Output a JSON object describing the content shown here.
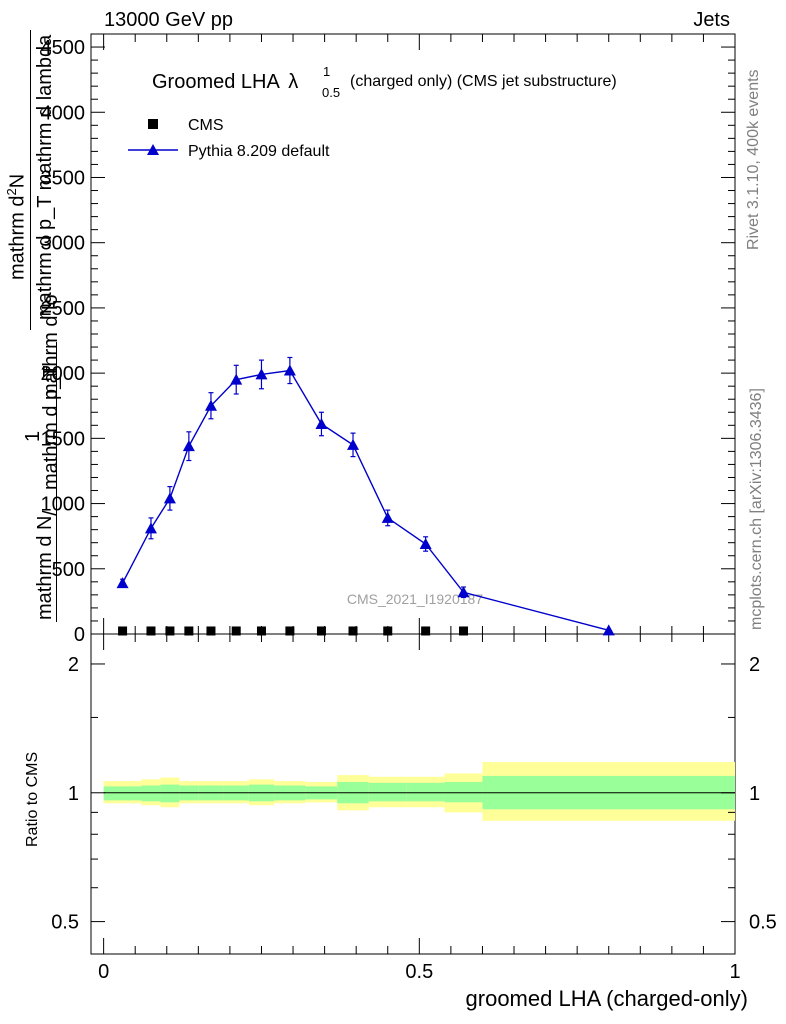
{
  "header": {
    "left": "13000 GeV pp",
    "right": "Jets"
  },
  "side_labels": {
    "rivet": "Rivet 3.1.10,  400k events",
    "mcplots": "mcplots.cern.ch [arXiv:1306.3436]"
  },
  "watermark": "CMS_2021_I1920187",
  "chart_data": [
    {
      "type": "line",
      "title": {
        "main": "Groomed LHA",
        "lambda": "λ",
        "lambda_sup": "1",
        "lambda_sub": "0.5",
        "suffix": " (charged only) (CMS jet substructure)"
      },
      "ylabel": {
        "one": "1",
        "frac_num": "mathrm d N",
        "frac_den": "mathrm d p_T",
        "sep": "/",
        "rhs_num": "mathrm d",
        "rhs_num_sup": "2",
        "rhs_num_tail": "N",
        "rhs_den": "mathrm d p_T  mathrm d lambda",
        "raw_fragment": "mathrm d lo"
      },
      "xlim": [
        -0.02,
        1.0
      ],
      "ylim": [
        0,
        4600
      ],
      "yticks": [
        0,
        500,
        1000,
        1500,
        2000,
        2500,
        3000,
        3500,
        4000,
        4500
      ],
      "ytick_labels": [
        "0",
        "500",
        "1000",
        "1500",
        "2000",
        "2500",
        "3000",
        "3500",
        "4000",
        "4500"
      ],
      "legend_position": "top-left",
      "series": [
        {
          "name": "CMS",
          "marker": "square",
          "color": "#000000",
          "x": [
            0.03,
            0.075,
            0.105,
            0.135,
            0.17,
            0.21,
            0.25,
            0.295,
            0.345,
            0.395,
            0.45,
            0.51,
            0.57
          ],
          "y": [
            4,
            4,
            4,
            4,
            4,
            4,
            4,
            4,
            4,
            4,
            4,
            4,
            4
          ]
        },
        {
          "name": "Pythia 8.209 default",
          "marker": "triangle",
          "color": "#0000cc",
          "x": [
            0.03,
            0.075,
            0.105,
            0.135,
            0.17,
            0.21,
            0.25,
            0.295,
            0.345,
            0.395,
            0.45,
            0.51,
            0.57,
            0.8
          ],
          "y": [
            390,
            810,
            1040,
            1440,
            1750,
            1950,
            1990,
            2020,
            1610,
            1450,
            890,
            690,
            320,
            28
          ],
          "yerr": [
            30,
            80,
            90,
            110,
            100,
            110,
            110,
            100,
            90,
            90,
            60,
            55,
            40,
            0
          ]
        }
      ]
    },
    {
      "type": "line",
      "ylabel": "Ratio to CMS",
      "yscale": "log",
      "ylim": [
        0.42,
        2.35
      ],
      "yticks": [
        0.5,
        1,
        2
      ],
      "ytick_labels": [
        "0.5",
        "1",
        "2"
      ],
      "xlim": [
        -0.02,
        1.0
      ],
      "xticks": [
        0,
        0.5,
        1
      ],
      "xtick_labels": [
        "0",
        "0.5",
        "1"
      ],
      "xlabel": "groomed LHA (charged-only)",
      "bands": {
        "inner_color": "#99ff99",
        "outer_color": "#ffff99",
        "edges": [
          0,
          0.06,
          0.09,
          0.12,
          0.15,
          0.19,
          0.23,
          0.27,
          0.32,
          0.37,
          0.42,
          0.48,
          0.54,
          0.6,
          1.0
        ],
        "inner_low": [
          0.96,
          0.955,
          0.95,
          0.96,
          0.96,
          0.96,
          0.955,
          0.96,
          0.965,
          0.945,
          0.955,
          0.955,
          0.95,
          0.915
        ],
        "inner_high": [
          1.035,
          1.04,
          1.045,
          1.04,
          1.04,
          1.04,
          1.045,
          1.04,
          1.035,
          1.06,
          1.055,
          1.055,
          1.06,
          1.095
        ],
        "outer_low": [
          0.945,
          0.935,
          0.925,
          0.945,
          0.945,
          0.945,
          0.935,
          0.945,
          0.95,
          0.91,
          0.925,
          0.925,
          0.9,
          0.86
        ],
        "outer_high": [
          1.065,
          1.075,
          1.085,
          1.065,
          1.065,
          1.065,
          1.075,
          1.065,
          1.06,
          1.1,
          1.09,
          1.09,
          1.11,
          1.18
        ]
      },
      "reference_line": 1
    }
  ]
}
